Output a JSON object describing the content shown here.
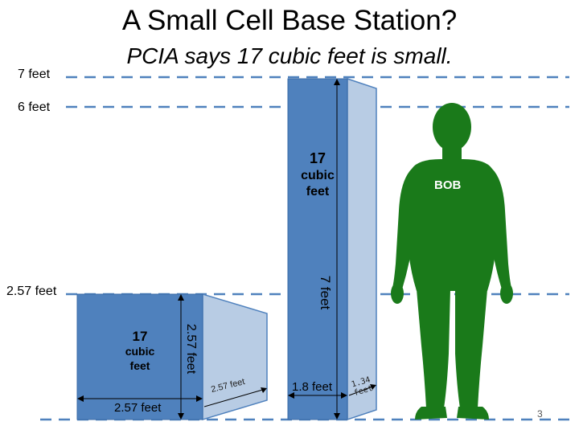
{
  "title": "A Small Cell Base Station?",
  "subtitle": "PCIA says 17 cubic feet is small.",
  "reference_lines": {
    "seven_feet": "7 feet",
    "six_feet": "6 feet",
    "two_57_feet": "2.57 feet"
  },
  "tall_box": {
    "label_line1": "17",
    "label_line2": "cubic",
    "label_line3": "feet",
    "height_label": "7 feet",
    "width_label": "1.8 feet",
    "depth_label": "1.34 feet"
  },
  "cube_box": {
    "label_line1": "17",
    "label_line2": "cubic",
    "label_line3": "feet",
    "height_label": "2.57 feet",
    "width_label": "2.57 feet",
    "depth_label": "2.57 feet"
  },
  "person": {
    "name": "BOB",
    "color": "#1a7a1a"
  },
  "colors": {
    "box_front": "#4f81bd",
    "box_side": "#b8cce4",
    "dashed_line": "#4f81bd"
  },
  "page_number": "3"
}
